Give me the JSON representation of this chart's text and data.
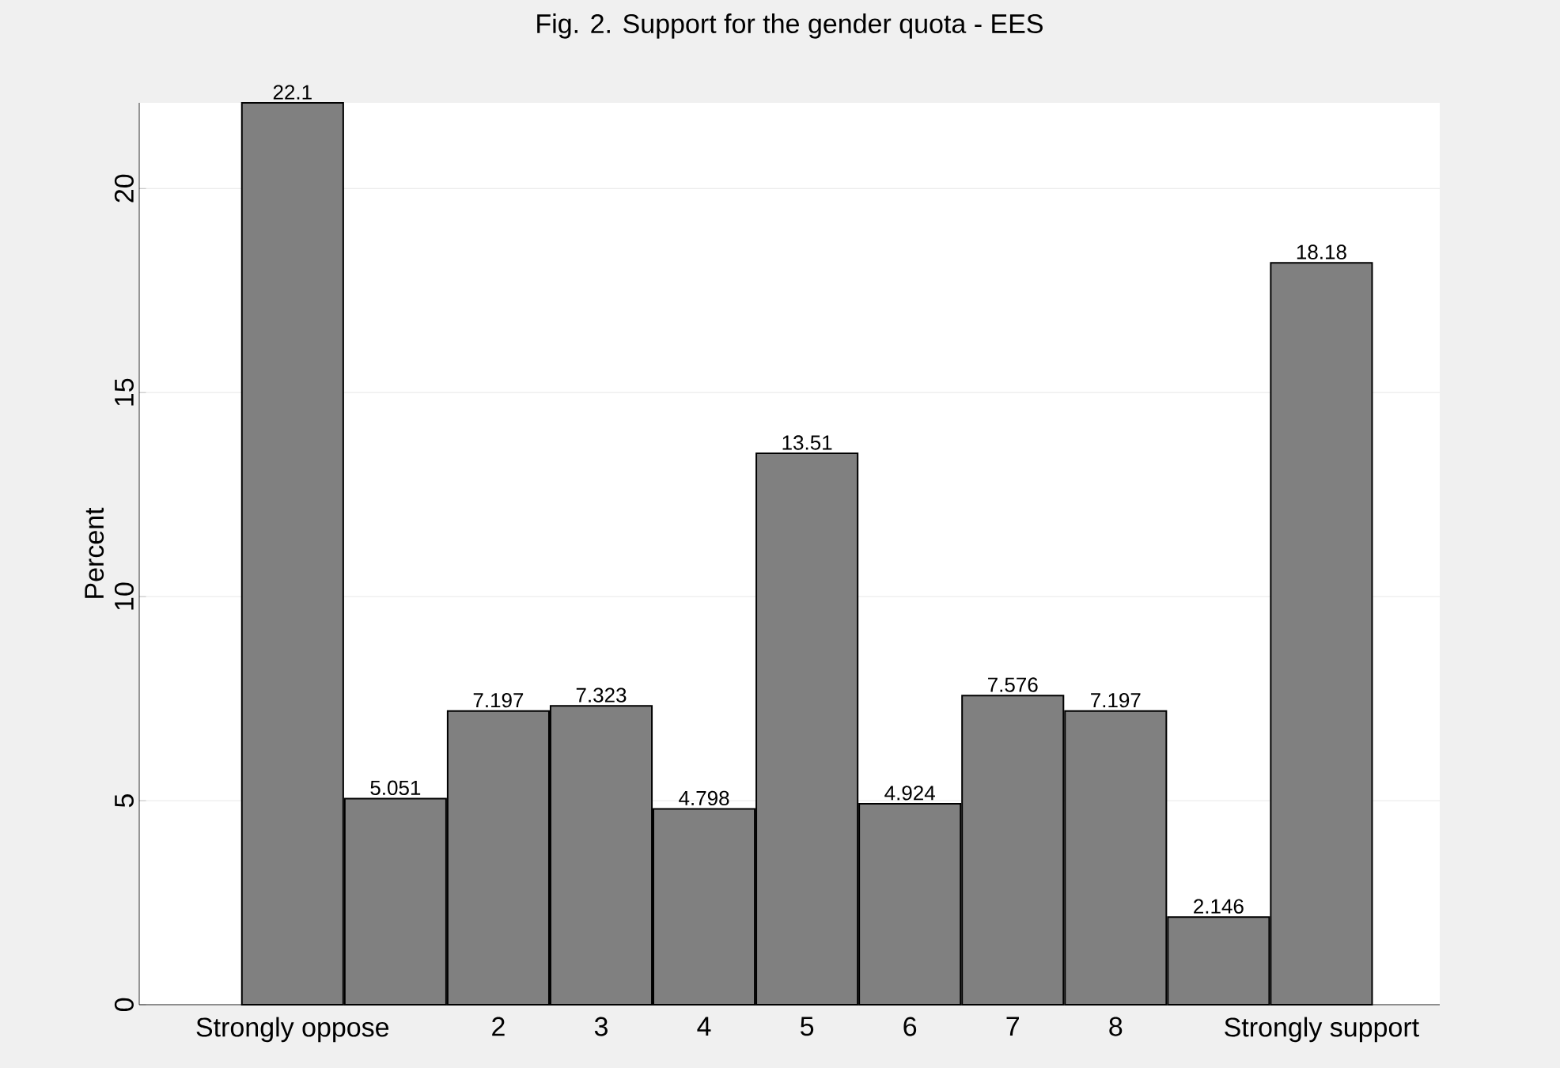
{
  "chart_data": {
    "type": "bar",
    "title": "Fig. 2. Support for the gender quota - EES",
    "ylabel": "Percent",
    "categories": [
      "Strongly oppose",
      null,
      "2",
      "3",
      "4",
      "5",
      "6",
      "7",
      "8",
      null,
      "Strongly support"
    ],
    "values": [
      22.1,
      5.051,
      7.197,
      7.323,
      4.798,
      13.51,
      4.924,
      7.576,
      7.197,
      2.146,
      18.18
    ],
    "color": "#808080",
    "ylim": [
      0,
      22.1
    ],
    "yticks": [
      0,
      5,
      10,
      15,
      20
    ],
    "grid": "y",
    "data_labels": true
  }
}
